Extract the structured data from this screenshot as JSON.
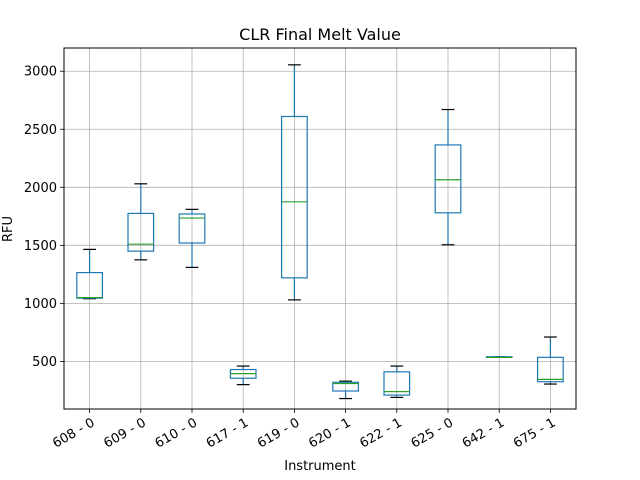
{
  "chart_data": {
    "type": "box",
    "title": "CLR Final Melt Value",
    "xlabel": "Instrument",
    "ylabel": "RFU",
    "ylim": [
      90,
      3200
    ],
    "yticks": [
      500,
      1000,
      1500,
      2000,
      2500,
      3000
    ],
    "grid": true,
    "box_color": "#1f77b4",
    "median_color": "#2ca02c",
    "categories": [
      "608 - 0",
      "609 - 0",
      "610 - 0",
      "617 - 1",
      "619 - 0",
      "620 - 1",
      "622 - 1",
      "625 - 0",
      "642 - 1",
      "675 - 1"
    ],
    "boxes": [
      {
        "min": 1040,
        "q1": 1045,
        "median": 1050,
        "q3": 1265,
        "max": 1465
      },
      {
        "min": 1375,
        "q1": 1450,
        "median": 1510,
        "q3": 1775,
        "max": 2030
      },
      {
        "min": 1310,
        "q1": 1520,
        "median": 1735,
        "q3": 1770,
        "max": 1810
      },
      {
        "min": 300,
        "q1": 355,
        "median": 395,
        "q3": 430,
        "max": 460
      },
      {
        "min": 1030,
        "q1": 1220,
        "median": 1875,
        "q3": 2610,
        "max": 3055
      },
      {
        "min": 180,
        "q1": 245,
        "median": 310,
        "q3": 320,
        "max": 330
      },
      {
        "min": 190,
        "q1": 210,
        "median": 240,
        "q3": 410,
        "max": 460
      },
      {
        "min": 1505,
        "q1": 1780,
        "median": 2065,
        "q3": 2365,
        "max": 2670
      },
      {
        "min": 535,
        "q1": 535,
        "median": 535,
        "q3": 540,
        "max": 540
      },
      {
        "min": 305,
        "q1": 325,
        "median": 345,
        "q3": 535,
        "max": 710
      }
    ]
  }
}
